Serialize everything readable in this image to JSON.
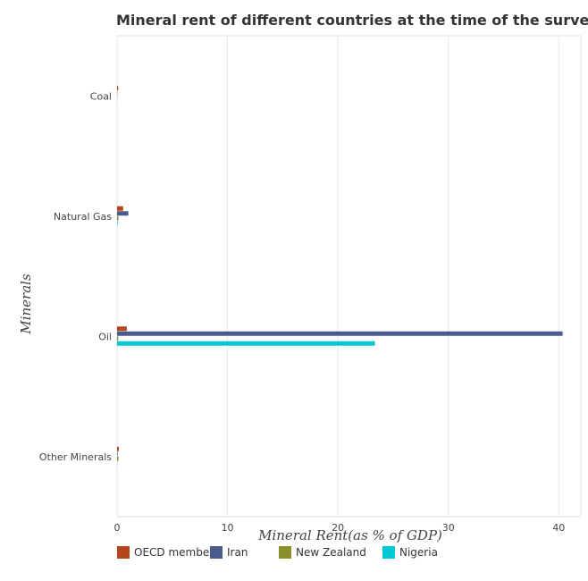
{
  "chart_data": {
    "type": "bar",
    "orientation": "horizontal",
    "title": "Mineral rent of different countries at the time of the survey in",
    "xlabel": "Mineral Rent(as % of GDP)",
    "ylabel": "Minerals",
    "categories": [
      "Coal",
      "Natural Gas",
      "Oil",
      "Other Minerals"
    ],
    "xlim": [
      0,
      42
    ],
    "xticks": [
      0,
      10,
      20,
      30,
      40
    ],
    "grid": true,
    "legend_position": "bottom-left",
    "series": [
      {
        "name": "OECD members",
        "color": "#b5451b",
        "values": [
          0.1,
          0.55,
          0.88,
          0.16
        ]
      },
      {
        "name": "Iran",
        "color": "#4a5b8c",
        "values": [
          0.02,
          1.02,
          40.35,
          0.05
        ]
      },
      {
        "name": "New Zealand",
        "color": "#8a8f28",
        "values": [
          0.01,
          0.12,
          0.1,
          0.12
        ]
      },
      {
        "name": "Nigeria",
        "color": "#00c8d4",
        "values": [
          0.0,
          0.05,
          23.35,
          0.01
        ]
      }
    ]
  }
}
